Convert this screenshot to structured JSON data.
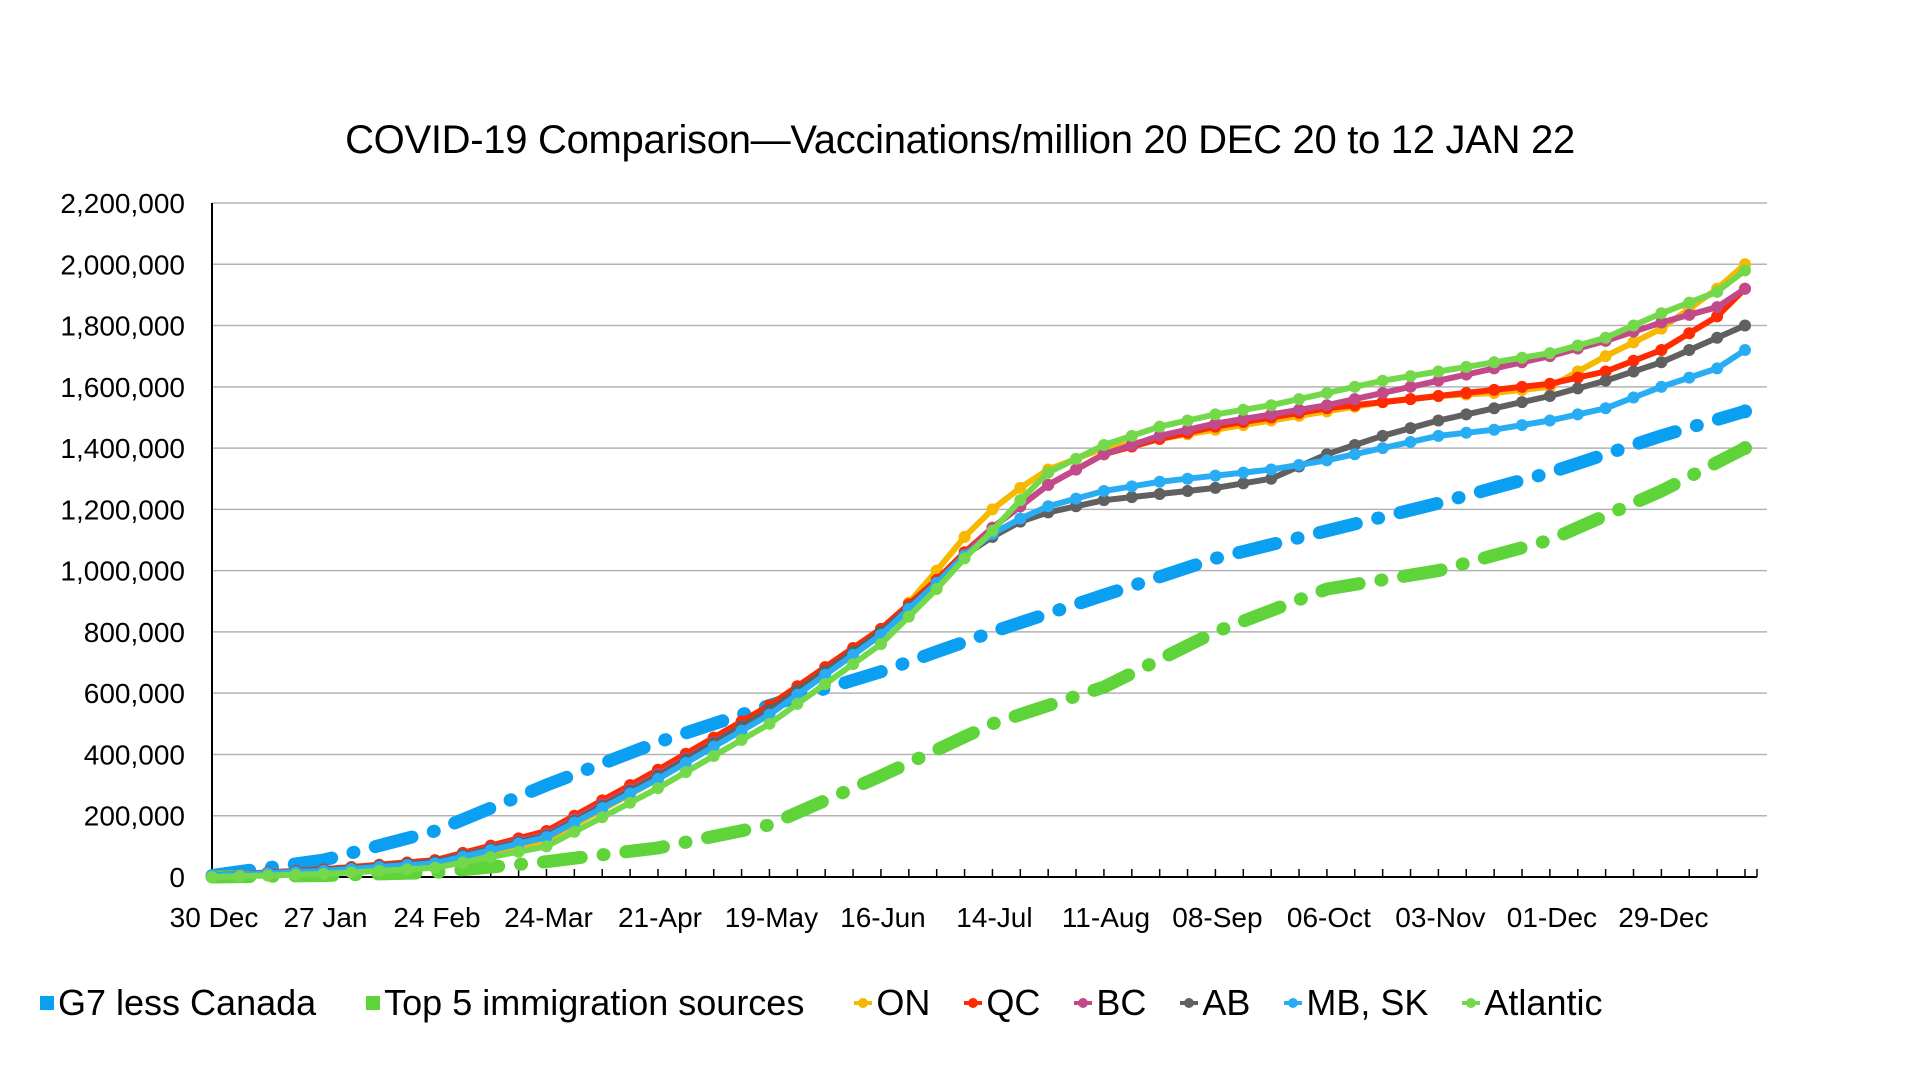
{
  "chart_data": {
    "type": "line",
    "title": "COVID-19 Comparison—Vaccinations/million 20 DEC 20 to 12 JAN 22",
    "xlabel": "",
    "ylabel": "",
    "ylim": [
      0,
      2200000
    ],
    "yticks": [
      0,
      200000,
      400000,
      600000,
      800000,
      1000000,
      1200000,
      1400000,
      1600000,
      1800000,
      2000000,
      2200000
    ],
    "ytick_labels": [
      "0",
      "200,000",
      "400,000",
      "600,000",
      "800,000",
      "1,000,000",
      "1,200,000",
      "1,400,000",
      "1,600,000",
      "1,800,000",
      "2,000,000",
      "2,200,000"
    ],
    "x_unit": "weeks since 30 Dec 2020",
    "xlim": [
      0,
      55
    ],
    "xtick_positions": [
      0,
      4,
      8,
      12,
      16,
      20,
      24,
      28,
      32,
      36,
      40,
      44,
      48,
      52
    ],
    "xtick_labels": [
      "30 Dec",
      "27 Jan",
      "24 Feb",
      "24-Mar",
      "21-Apr",
      "19-May",
      "16-Jun",
      "14-Jul",
      "11-Aug",
      "08-Sep",
      "06-Oct",
      "03-Nov",
      "01-Dec",
      "29-Dec"
    ],
    "grid": "horizontal",
    "legend_position": "bottom",
    "series": [
      {
        "name": "G7 less Canada",
        "color": "#0a9ff0",
        "style": "dashdot-thick",
        "marker": "square",
        "x": [
          0,
          4,
          8,
          12,
          16,
          20,
          24,
          28,
          32,
          36,
          40,
          44,
          48,
          52,
          55
        ],
        "values": [
          5000,
          55000,
          150000,
          300000,
          440000,
          560000,
          670000,
          800000,
          920000,
          1040000,
          1130000,
          1220000,
          1320000,
          1440000,
          1520000
        ]
      },
      {
        "name": "Top 5 immigration sources",
        "color": "#5fd33a",
        "style": "dashdot-thick",
        "marker": "square",
        "x": [
          0,
          4,
          8,
          12,
          16,
          20,
          24,
          28,
          32,
          36,
          40,
          44,
          48,
          52,
          55
        ],
        "values": [
          0,
          5000,
          15000,
          50000,
          95000,
          170000,
          330000,
          500000,
          620000,
          800000,
          940000,
          1000000,
          1100000,
          1260000,
          1400000
        ]
      },
      {
        "name": "ON",
        "color": "#f6b800",
        "style": "solid",
        "marker": "circle",
        "x": [
          0,
          4,
          8,
          12,
          16,
          20,
          24,
          26,
          27,
          28,
          29,
          30,
          32,
          34,
          36,
          38,
          40,
          42,
          44,
          46,
          48,
          50,
          52,
          54,
          55
        ],
        "values": [
          5000,
          20000,
          45000,
          120000,
          320000,
          540000,
          790000,
          1000000,
          1110000,
          1200000,
          1270000,
          1330000,
          1400000,
          1430000,
          1460000,
          1490000,
          1520000,
          1550000,
          1570000,
          1580000,
          1600000,
          1700000,
          1790000,
          1920000,
          2000000
        ]
      },
      {
        "name": "QC",
        "color": "#ff2a00",
        "style": "solid",
        "marker": "circle",
        "x": [
          0,
          4,
          8,
          12,
          16,
          20,
          24,
          26,
          27,
          28,
          29,
          30,
          32,
          34,
          36,
          38,
          40,
          42,
          44,
          46,
          48,
          50,
          52,
          54,
          55
        ],
        "values": [
          5000,
          25000,
          55000,
          150000,
          350000,
          560000,
          810000,
          970000,
          1060000,
          1140000,
          1210000,
          1280000,
          1380000,
          1430000,
          1470000,
          1500000,
          1530000,
          1550000,
          1570000,
          1590000,
          1610000,
          1650000,
          1720000,
          1830000,
          1920000
        ]
      },
      {
        "name": "BC",
        "color": "#c24a8b",
        "style": "solid",
        "marker": "circle",
        "x": [
          0,
          4,
          8,
          12,
          16,
          20,
          24,
          26,
          27,
          28,
          29,
          30,
          32,
          34,
          36,
          38,
          40,
          42,
          44,
          46,
          48,
          50,
          52,
          54,
          55
        ],
        "values": [
          5000,
          22000,
          50000,
          140000,
          335000,
          545000,
          800000,
          960000,
          1050000,
          1140000,
          1210000,
          1280000,
          1380000,
          1440000,
          1480000,
          1510000,
          1540000,
          1580000,
          1620000,
          1660000,
          1700000,
          1750000,
          1810000,
          1860000,
          1920000
        ]
      },
      {
        "name": "AB",
        "color": "#606060",
        "style": "solid",
        "marker": "circle",
        "x": [
          0,
          4,
          8,
          12,
          16,
          20,
          24,
          26,
          27,
          28,
          29,
          30,
          32,
          34,
          36,
          38,
          40,
          42,
          44,
          46,
          48,
          50,
          52,
          54,
          55
        ],
        "values": [
          5000,
          22000,
          50000,
          135000,
          330000,
          545000,
          800000,
          960000,
          1050000,
          1110000,
          1160000,
          1190000,
          1230000,
          1250000,
          1270000,
          1300000,
          1380000,
          1440000,
          1490000,
          1530000,
          1570000,
          1620000,
          1680000,
          1760000,
          1800000
        ]
      },
      {
        "name": "MB, SK",
        "color": "#28adf5",
        "style": "solid",
        "marker": "circle",
        "x": [
          0,
          4,
          8,
          12,
          16,
          20,
          24,
          26,
          27,
          28,
          29,
          30,
          32,
          34,
          36,
          38,
          40,
          42,
          44,
          46,
          48,
          50,
          52,
          54,
          55
        ],
        "values": [
          5000,
          20000,
          45000,
          130000,
          320000,
          530000,
          790000,
          960000,
          1050000,
          1120000,
          1170000,
          1210000,
          1260000,
          1290000,
          1310000,
          1330000,
          1360000,
          1400000,
          1440000,
          1460000,
          1490000,
          1530000,
          1600000,
          1660000,
          1720000
        ]
      },
      {
        "name": "Atlantic",
        "color": "#74d94a",
        "style": "solid",
        "marker": "circle",
        "x": [
          0,
          4,
          8,
          12,
          16,
          20,
          24,
          26,
          27,
          28,
          29,
          30,
          32,
          34,
          36,
          38,
          40,
          42,
          44,
          46,
          48,
          50,
          52,
          54,
          55
        ],
        "values": [
          0,
          10000,
          30000,
          100000,
          290000,
          500000,
          760000,
          940000,
          1040000,
          1130000,
          1230000,
          1320000,
          1410000,
          1470000,
          1510000,
          1540000,
          1580000,
          1620000,
          1650000,
          1680000,
          1710000,
          1760000,
          1840000,
          1910000,
          1980000
        ]
      }
    ]
  }
}
